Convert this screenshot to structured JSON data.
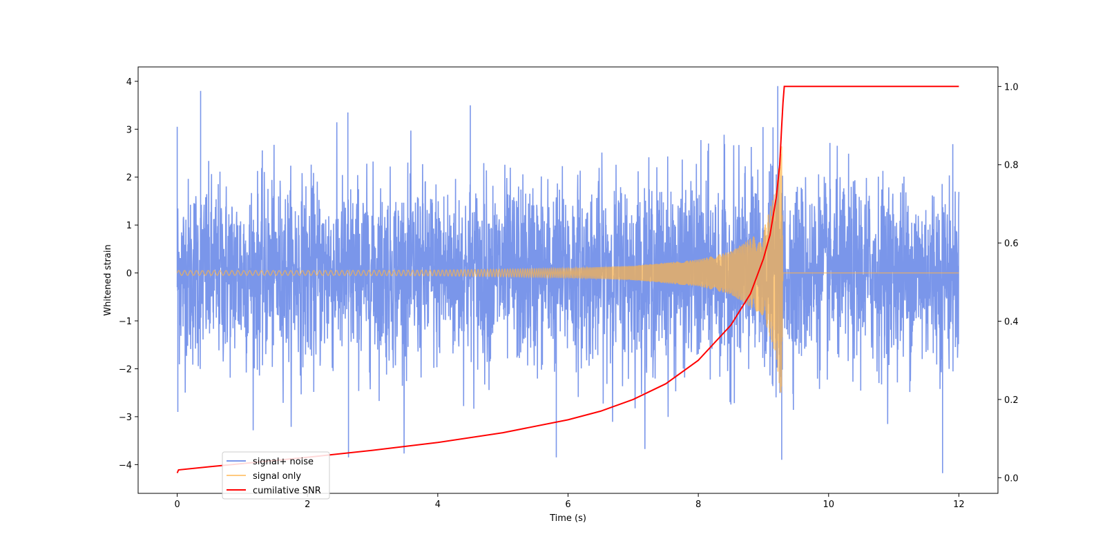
{
  "chart_data": {
    "type": "line",
    "title": "",
    "xlabel": "Time (s)",
    "ylabel": "Whitened strain",
    "y2label": "",
    "xlim": [
      -0.6,
      12.6
    ],
    "ylim": [
      -4.6,
      4.3
    ],
    "y2lim": [
      -0.04,
      1.05
    ],
    "xticks": [
      0,
      2,
      4,
      6,
      8,
      10,
      12
    ],
    "xtick_labels": [
      "0",
      "2",
      "4",
      "6",
      "8",
      "10",
      "12"
    ],
    "yticks": [
      -4,
      -3,
      -2,
      -1,
      0,
      1,
      2,
      3,
      4
    ],
    "ytick_labels": [
      "−4",
      "−3",
      "−2",
      "−1",
      "0",
      "1",
      "2",
      "3",
      "4"
    ],
    "y2ticks": [
      0.0,
      0.2,
      0.4,
      0.6,
      0.8,
      1.0
    ],
    "y2tick_labels": [
      "0.0",
      "0.2",
      "0.4",
      "0.6",
      "0.8",
      "1.0"
    ],
    "grid": false,
    "legend_position": "lower-left",
    "merger_time": 9.3,
    "duration": 12,
    "series": [
      {
        "name": "signal+ noise",
        "axis": "left",
        "color": "#4169E1",
        "alpha": 0.7,
        "description_values": {
          "std": 1.0,
          "envelope_peaks": [
            [
              0.0,
              3.05
            ],
            [
              0.36,
              3.8
            ],
            [
              2.62,
              3.35
            ],
            [
              4.5,
              3.5
            ],
            [
              9.22,
              3.9
            ],
            [
              0.01,
              -2.9
            ],
            [
              2.63,
              -3.85
            ],
            [
              5.82,
              -3.85
            ],
            [
              9.28,
              -3.9
            ],
            [
              11.75,
              -4.18
            ]
          ]
        }
      },
      {
        "name": "signal only",
        "axis": "left",
        "color": "#FFB347",
        "alpha": 0.7,
        "envelope": [
          [
            0,
            0.05
          ],
          [
            2,
            0.05
          ],
          [
            4,
            0.06
          ],
          [
            6,
            0.1
          ],
          [
            7,
            0.15
          ],
          [
            8,
            0.28
          ],
          [
            8.5,
            0.45
          ],
          [
            9.0,
            0.9
          ],
          [
            9.2,
            1.8
          ],
          [
            9.28,
            2.8
          ],
          [
            9.3,
            0.0
          ],
          [
            12,
            0.0
          ]
        ]
      },
      {
        "name": "cumilative SNR",
        "axis": "right",
        "color": "#FF0000",
        "points": [
          [
            0.0,
            0.012
          ],
          [
            0.02,
            0.02
          ],
          [
            0.5,
            0.028
          ],
          [
            1.0,
            0.036
          ],
          [
            2.0,
            0.052
          ],
          [
            3.0,
            0.07
          ],
          [
            4.0,
            0.09
          ],
          [
            5.0,
            0.115
          ],
          [
            6.0,
            0.148
          ],
          [
            6.5,
            0.17
          ],
          [
            7.0,
            0.2
          ],
          [
            7.5,
            0.24
          ],
          [
            8.0,
            0.3
          ],
          [
            8.5,
            0.39
          ],
          [
            8.8,
            0.47
          ],
          [
            9.0,
            0.56
          ],
          [
            9.1,
            0.62
          ],
          [
            9.2,
            0.72
          ],
          [
            9.25,
            0.8
          ],
          [
            9.28,
            0.9
          ],
          [
            9.3,
            0.96
          ],
          [
            9.32,
            1.0
          ],
          [
            12.0,
            1.0
          ]
        ]
      }
    ]
  }
}
